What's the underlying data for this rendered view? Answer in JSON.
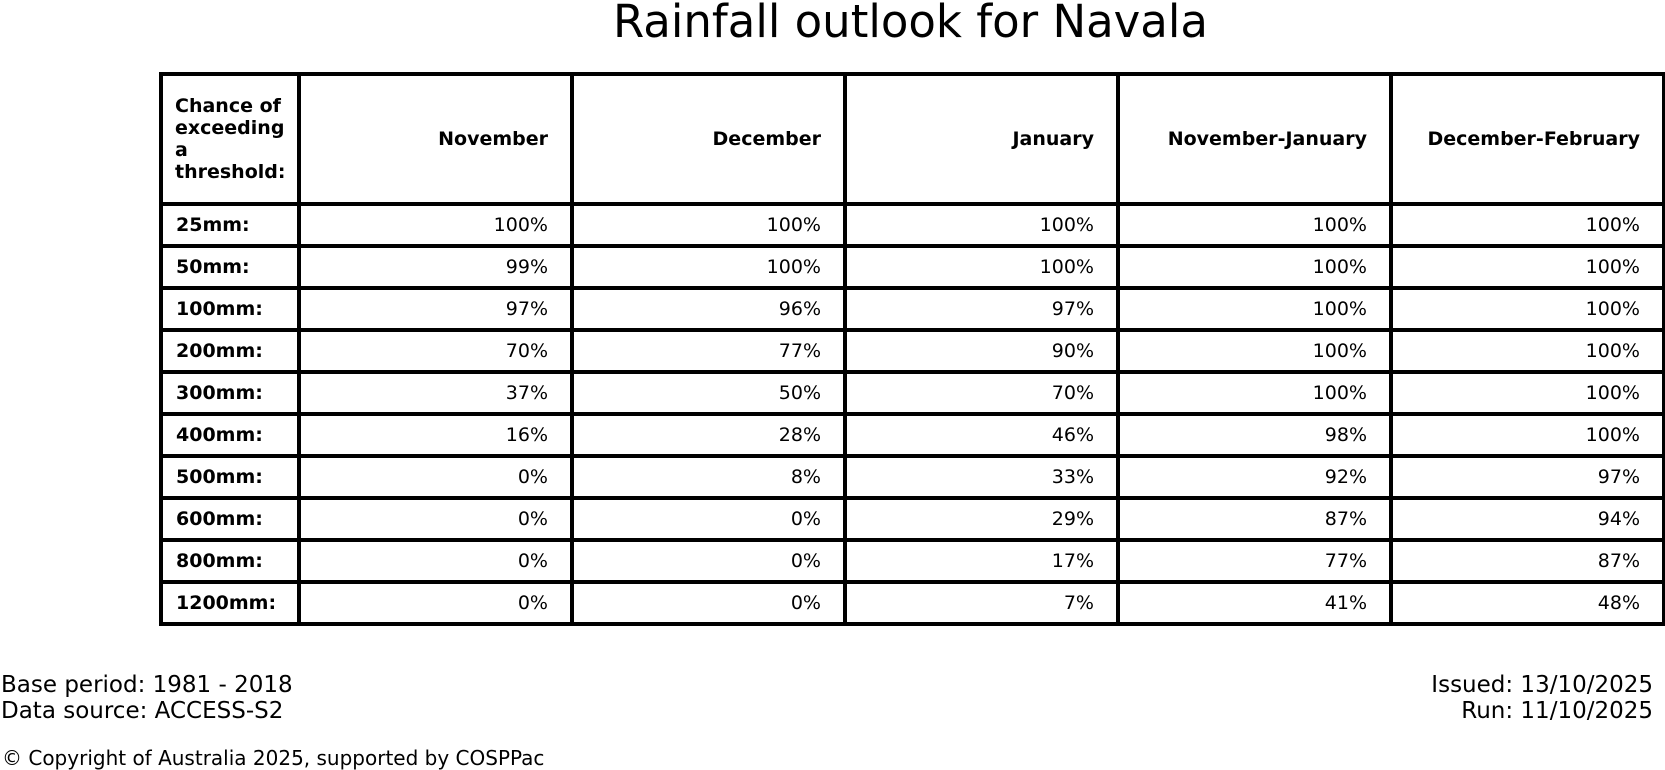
{
  "title": "Rainfall outlook for Navala",
  "colors": {
    "background": "#ffffff",
    "text": "#000000",
    "border": "#000000"
  },
  "chart_data": {
    "type": "table",
    "title": "Rainfall outlook for Navala",
    "corner_header": "Chance of\nexceeding\na threshold:",
    "columns": [
      "November",
      "December",
      "January",
      "November-January",
      "December-February"
    ],
    "row_labels": [
      "25mm:",
      "50mm:",
      "100mm:",
      "200mm:",
      "300mm:",
      "400mm:",
      "500mm:",
      "600mm:",
      "800mm:",
      "1200mm:"
    ],
    "rows": [
      [
        "100%",
        "100%",
        "100%",
        "100%",
        "100%"
      ],
      [
        "99%",
        "100%",
        "100%",
        "100%",
        "100%"
      ],
      [
        "97%",
        "96%",
        "97%",
        "100%",
        "100%"
      ],
      [
        "70%",
        "77%",
        "90%",
        "100%",
        "100%"
      ],
      [
        "37%",
        "50%",
        "70%",
        "100%",
        "100%"
      ],
      [
        "16%",
        "28%",
        "46%",
        "98%",
        "100%"
      ],
      [
        "0%",
        "8%",
        "33%",
        "92%",
        "97%"
      ],
      [
        "0%",
        "0%",
        "29%",
        "87%",
        "94%"
      ],
      [
        "0%",
        "0%",
        "17%",
        "77%",
        "87%"
      ],
      [
        "0%",
        "0%",
        "7%",
        "41%",
        "48%"
      ]
    ]
  },
  "footer": {
    "base_period": "Base period: 1981 - 2018",
    "data_source": "Data source: ACCESS-S2",
    "issued": "Issued: 13/10/2025",
    "run": "Run: 11/10/2025",
    "copyright": "© Copyright of Australia 2025, supported by COSPPac"
  }
}
